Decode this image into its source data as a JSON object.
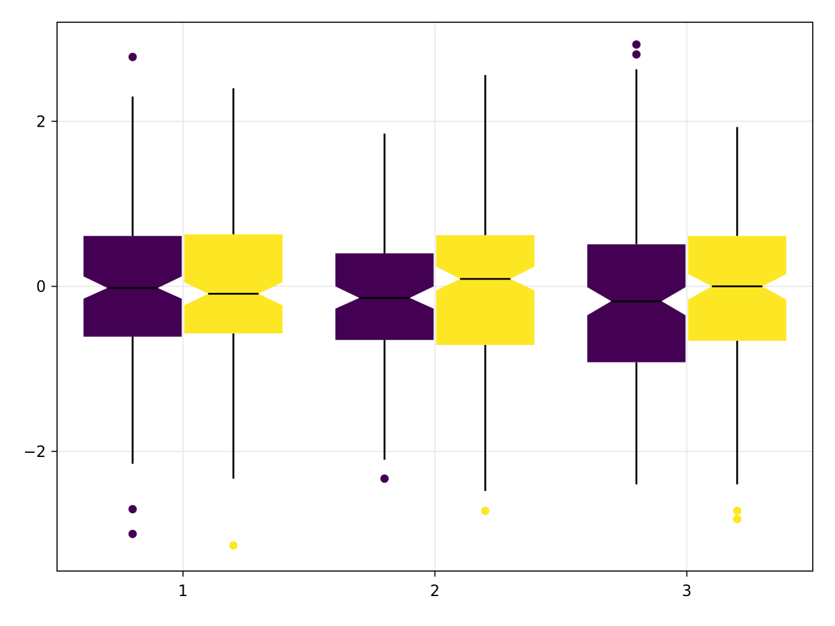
{
  "chart_data": {
    "type": "boxplot",
    "title": "",
    "xlabel": "",
    "ylabel": "",
    "grid": true,
    "notched": true,
    "xlim": [
      0.5,
      3.5
    ],
    "ylim": [
      -3.45,
      3.2
    ],
    "x_ticks": [
      1,
      2,
      3
    ],
    "x_tick_labels": [
      "1",
      "2",
      "3"
    ],
    "y_ticks": [
      -2,
      0,
      2
    ],
    "y_tick_labels": [
      "−2",
      "0",
      "2"
    ],
    "colors": {
      "series_1": "#440154",
      "series_2": "#fde725"
    },
    "series": [
      {
        "color": "#440154",
        "boxes": [
          {
            "category": "1",
            "q1": -0.61,
            "median": -0.02,
            "q3": 0.61,
            "notch_low": -0.15,
            "notch_high": 0.12,
            "whisker_low": -2.15,
            "whisker_high": 2.3,
            "outliers": [
              2.78,
              -2.7,
              -3.0
            ]
          },
          {
            "category": "2",
            "q1": -0.65,
            "median": -0.14,
            "q3": 0.4,
            "notch_low": -0.27,
            "notch_high": 0.0,
            "whisker_low": -2.1,
            "whisker_high": 1.85,
            "outliers": [
              -2.33
            ]
          },
          {
            "category": "3",
            "q1": -0.92,
            "median": -0.18,
            "q3": 0.51,
            "notch_low": -0.35,
            "notch_high": -0.01,
            "whisker_low": -2.4,
            "whisker_high": 2.63,
            "outliers": [
              2.93,
              2.81
            ]
          }
        ]
      },
      {
        "color": "#fde725",
        "boxes": [
          {
            "category": "1",
            "q1": -0.57,
            "median": -0.09,
            "q3": 0.63,
            "notch_low": -0.23,
            "notch_high": 0.05,
            "whisker_low": -2.33,
            "whisker_high": 2.4,
            "outliers": [
              -3.14
            ]
          },
          {
            "category": "2",
            "q1": -0.71,
            "median": 0.09,
            "q3": 0.62,
            "notch_low": -0.05,
            "notch_high": 0.24,
            "whisker_low": -2.48,
            "whisker_high": 2.56,
            "outliers": [
              -2.72
            ]
          },
          {
            "category": "3",
            "q1": -0.66,
            "median": 0.0,
            "q3": 0.61,
            "notch_low": -0.16,
            "notch_high": 0.15,
            "whisker_low": -2.4,
            "whisker_high": 1.93,
            "outliers": [
              -2.72,
              -2.82
            ]
          }
        ]
      }
    ]
  }
}
